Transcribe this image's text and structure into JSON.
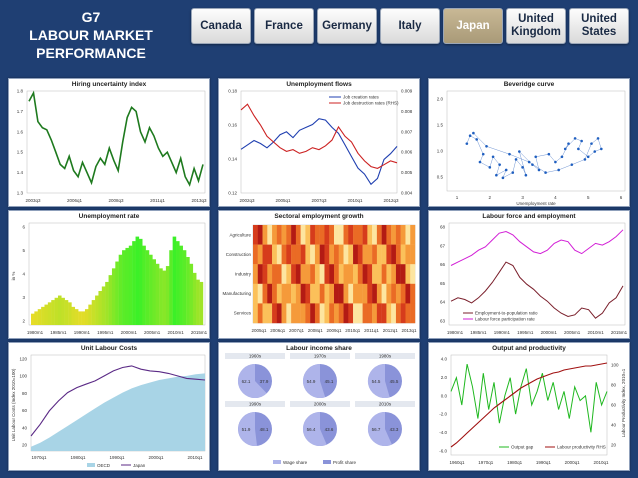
{
  "brand": {
    "line1": "G7",
    "line2": "LABOUR MARKET",
    "line3": "PERFORMANCE"
  },
  "tabs": [
    {
      "label": "Canada",
      "active": false
    },
    {
      "label": "France",
      "active": false
    },
    {
      "label": "Germany",
      "active": false
    },
    {
      "label": "Italy",
      "active": false
    },
    {
      "label": "Japan",
      "active": true
    },
    {
      "label": "United Kingdom",
      "active": false
    },
    {
      "label": "United States",
      "active": false
    }
  ],
  "colors": {
    "background": "#1f3f73",
    "active_tab": "#b5a684",
    "green": "#1e7a1e",
    "blue": "#1f3fb0",
    "red": "#cc2222",
    "maroon": "#7a1f2b",
    "magenta": "#d21fd6",
    "purple": "#5b2a86",
    "lightblue": "#a8d4e6"
  },
  "charts": {
    "hiring": {
      "title": "Hiring uncertainty index",
      "x_ticks": [
        "2003q3",
        "2006q1",
        "2008q3",
        "2011q1",
        "2013q3"
      ],
      "y_ticks": [
        "1.3",
        "1.4",
        "1.5",
        "1.6",
        "1.7",
        "1.8"
      ],
      "chart_data": {
        "type": "line",
        "ylim": [
          1.3,
          1.8
        ],
        "series": [
          {
            "values": [
              1.75,
              1.79,
              1.65,
              1.62,
              1.61,
              1.56,
              1.5,
              1.44,
              1.42,
              1.48,
              1.41,
              1.38,
              1.45,
              1.4,
              1.35,
              1.43,
              1.47,
              1.44,
              1.52,
              1.46,
              1.41,
              1.55,
              1.67,
              1.72,
              1.7,
              1.6,
              1.55,
              1.62,
              1.58,
              1.52,
              1.48,
              1.5,
              1.45,
              1.4,
              1.47,
              1.38,
              1.34,
              1.42,
              1.36,
              1.44
            ]
          }
        ]
      }
    },
    "unemp_flows": {
      "title": "Unemployment flows",
      "legend": [
        "Job creation rates",
        "Job destruction rates (RHS)"
      ],
      "x_ticks": [
        "2002q3",
        "2005q1",
        "2007q3",
        "2010q1",
        "2012q3"
      ],
      "y_ticks_left": [
        "0.12",
        "0.14",
        "0.16",
        "0.18"
      ],
      "y_ticks_right": [
        "0.004",
        "0.005",
        "0.006",
        "0.007",
        "0.008",
        "0.009"
      ],
      "chart_data": {
        "type": "line",
        "series": [
          {
            "values": [
              0.145,
              0.148,
              0.151,
              0.149,
              0.146,
              0.15,
              0.155,
              0.157,
              0.153,
              0.158,
              0.16,
              0.162,
              0.166,
              0.165,
              0.16,
              0.156,
              0.148,
              0.14,
              0.132,
              0.128,
              0.121,
              0.125,
              0.138,
              0.142,
              0.147
            ]
          },
          {
            "values": [
              0.0082,
              0.0085,
              0.0079,
              0.0074,
              0.0068,
              0.0065,
              0.0062,
              0.006,
              0.0061,
              0.0059,
              0.006,
              0.0062,
              0.0061,
              0.0063,
              0.0066,
              0.0073,
              0.0068,
              0.0065,
              0.0059,
              0.0055,
              0.0052,
              0.0051,
              0.0053,
              0.0055,
              0.0054
            ]
          }
        ]
      }
    },
    "beveridge": {
      "title": "Beveridge curve",
      "xlabel": "Unemployment rate",
      "x_ticks": [
        "1",
        "2",
        "3",
        "4",
        "5",
        "6"
      ],
      "y_ticks": [
        "0.5",
        "1.0",
        "1.5",
        "2.0"
      ],
      "chart_data": {
        "type": "scatter",
        "xlim": [
          1,
          6
        ],
        "ylim": [
          0.3,
          2.2
        ],
        "series": [
          {
            "x": [
              1.3,
              1.4,
              1.6,
              1.8,
              1.7,
              2.0,
              2.1,
              2.3,
              2.2,
              2.5,
              2.4,
              2.7,
              2.8,
              3.0,
              3.1,
              2.9,
              3.3,
              3.5,
              3.4,
              3.8,
              4.0,
              4.2,
              4.4,
              4.3,
              4.6,
              4.8,
              4.7,
              5.0,
              5.2,
              5.4,
              5.3,
              5.1,
              4.9,
              4.5,
              4.1,
              3.7,
              3.2,
              2.6,
              1.9,
              1.5
            ],
            "y": [
              1.2,
              1.35,
              1.28,
              1.0,
              0.85,
              0.75,
              0.95,
              0.8,
              0.6,
              0.7,
              0.55,
              0.65,
              0.9,
              0.75,
              0.6,
              1.05,
              0.8,
              0.7,
              0.95,
              1.0,
              0.85,
              0.95,
              1.2,
              1.1,
              1.3,
              1.25,
              1.1,
              0.95,
              1.05,
              1.1,
              1.3,
              1.2,
              0.9,
              0.8,
              0.7,
              0.65,
              0.85,
              1.0,
              1.15,
              1.4
            ]
          }
        ]
      }
    },
    "unemp_rate": {
      "title": "Unemployment rate",
      "ylabel": "in %",
      "x_ticks": [
        "1980m1",
        "1985m1",
        "1990m1",
        "1995m1",
        "2000m1",
        "2005m1",
        "2010m1",
        "2015m1"
      ],
      "y_ticks": [
        "2",
        "3",
        "4",
        "5",
        "6"
      ],
      "chart_data": {
        "type": "bar",
        "ylim": [
          1.5,
          6
        ],
        "values": [
          2.0,
          2.1,
          2.2,
          2.3,
          2.4,
          2.5,
          2.6,
          2.7,
          2.8,
          2.7,
          2.6,
          2.5,
          2.3,
          2.2,
          2.1,
          2.1,
          2.2,
          2.4,
          2.6,
          2.8,
          3.0,
          3.2,
          3.4,
          3.7,
          4.0,
          4.3,
          4.6,
          4.8,
          4.9,
          5.0,
          5.2,
          5.4,
          5.3,
          5.0,
          4.8,
          4.6,
          4.4,
          4.2,
          4.0,
          3.9,
          4.1,
          4.8,
          5.4,
          5.2,
          5.0,
          4.8,
          4.5,
          4.2,
          3.8,
          3.5,
          3.4
        ]
      }
    },
    "sectoral": {
      "title": "Sectoral employment growth",
      "rows": [
        "Agriculture",
        "Construction",
        "Industry",
        "Manufacturing",
        "Services"
      ],
      "x_ticks": [
        "2005q1",
        "2006q1",
        "2007q1",
        "2008q1",
        "2009q1",
        "2010q1",
        "2011q1",
        "2012q1",
        "2013q1"
      ]
    },
    "labour_force": {
      "title": "Labour force and employment",
      "legend": [
        "Employment-to-population ratio",
        "Labour force participation rate"
      ],
      "x_ticks": [
        "1980m1",
        "1985m1",
        "1990m1",
        "1995m1",
        "2000m1",
        "2005m1",
        "2010m1",
        "2015m1"
      ],
      "y_ticks": [
        "63",
        "64",
        "65",
        "66",
        "67",
        "68"
      ],
      "chart_data": {
        "type": "line",
        "ylim": [
          62.5,
          68.5
        ],
        "series": [
          {
            "values": [
              63.9,
              64.1,
              64.0,
              63.8,
              64.1,
              64.5,
              65.0,
              65.6,
              66.2,
              66.0,
              65.3,
              64.9,
              64.6,
              64.2,
              63.9,
              63.5,
              63.2,
              63.0,
              63.1,
              63.5,
              63.4,
              62.9,
              63.2,
              63.8,
              64.1,
              64.8
            ]
          },
          {
            "values": [
              66.0,
              66.2,
              66.4,
              66.6,
              66.9,
              67.1,
              67.5,
              67.9,
              68.0,
              67.8,
              67.4,
              67.1,
              66.8,
              66.7,
              66.9,
              67.3,
              67.5,
              67.4,
              66.9,
              66.7,
              67.0,
              67.3,
              67.2,
              67.4,
              67.7,
              68.1
            ]
          }
        ]
      }
    },
    "ulc": {
      "title": "Unit Labour Costs",
      "ylabel": "Unit Labour Costs (Index 2010=100)",
      "legend": [
        "OECD",
        "Japan"
      ],
      "x_ticks": [
        "1970q1",
        "1980q1",
        "1990q1",
        "2000q1",
        "2010q1"
      ],
      "y_ticks": [
        "20",
        "40",
        "60",
        "80",
        "100",
        "120"
      ],
      "chart_data": {
        "type": "area",
        "ylim": [
          10,
          125
        ],
        "series": [
          {
            "name": "OECD",
            "values": [
              15,
              20,
              26,
              33,
              40,
              47,
              54,
              61,
              68,
              74,
              80,
              85,
              89,
              92,
              95,
              97,
              99,
              100,
              102,
              103
            ]
          },
          {
            "name": "Japan",
            "values": [
              28,
              42,
              58,
              70,
              80,
              86,
              90,
              94,
              100,
              106,
              110,
              112,
              108,
              106,
              105,
              103,
              100,
              97,
              96,
              95
            ]
          }
        ]
      }
    },
    "income_share": {
      "title": "Labour income share",
      "legend": [
        "Wage share",
        "Profit share"
      ],
      "pies": [
        {
          "label": "1960s",
          "wage": 62.1,
          "profit": 37.9
        },
        {
          "label": "1970s",
          "wage": 54.9,
          "profit": 45.1
        },
        {
          "label": "1980s",
          "wage": 54.5,
          "profit": 45.5
        },
        {
          "label": "1990s",
          "wage": 51.9,
          "profit": 48.1
        },
        {
          "label": "2000s",
          "wage": 56.4,
          "profit": 43.6
        },
        {
          "label": "2010s",
          "wage": 56.7,
          "profit": 43.3
        }
      ]
    },
    "output": {
      "title": "Output and productivity",
      "legend": [
        "Output gap",
        "Labour productivity RHS"
      ],
      "ylabel_right": "Labour Productivity Index, 2010=1",
      "x_ticks": [
        "1960q1",
        "1970q1",
        "1980q1",
        "1990q1",
        "2000q1",
        "2010q1"
      ],
      "y_ticks_left": [
        "-6.0",
        "-4.0",
        "-2.0",
        "0.0",
        "2.0",
        "4.0"
      ],
      "y_ticks_right": [
        "20",
        "40",
        "60",
        "80",
        "100"
      ],
      "chart_data": {
        "type": "line",
        "series": [
          {
            "name": "Output gap",
            "values": [
              0.5,
              2.0,
              -1.0,
              3.5,
              1.0,
              -2.5,
              2.5,
              -1.5,
              1.5,
              -3.0,
              0.0,
              2.0,
              -2.0,
              1.0,
              3.0,
              -1.0,
              0.5,
              2.5,
              -0.5,
              1.5,
              -1.5,
              0.5,
              -2.5,
              1.0,
              -0.5,
              0.0,
              -4.0,
              1.5,
              -1.0,
              0.5
            ]
          },
          {
            "name": "Labour productivity RHS",
            "values": [
              18,
              22,
              27,
              32,
              37,
              42,
              47,
              52,
              57,
              61,
              65,
              69,
              73,
              77,
              80,
              83,
              86,
              88,
              90,
              92,
              93,
              95,
              96,
              97,
              98,
              99,
              99,
              100,
              101,
              102
            ]
          }
        ]
      }
    }
  }
}
